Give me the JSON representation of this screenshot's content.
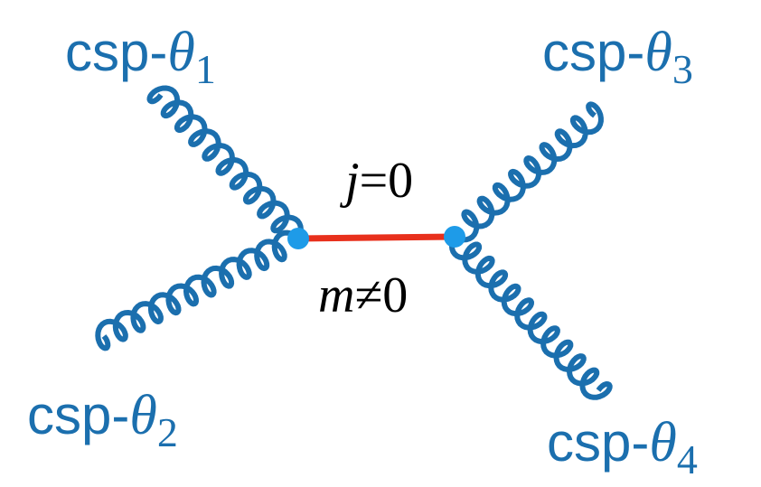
{
  "labels": [
    {
      "prefix": "csp-",
      "symbol": "θ",
      "index": "1"
    },
    {
      "prefix": "csp-",
      "symbol": "θ",
      "index": "2"
    },
    {
      "prefix": "csp-",
      "symbol": "θ",
      "index": "3"
    },
    {
      "prefix": "csp-",
      "symbol": "θ",
      "index": "4"
    }
  ],
  "propagator": {
    "spin": {
      "symbol": "j",
      "relation": "=0"
    },
    "mass": {
      "symbol": "m",
      "relation": "≠0"
    }
  }
}
